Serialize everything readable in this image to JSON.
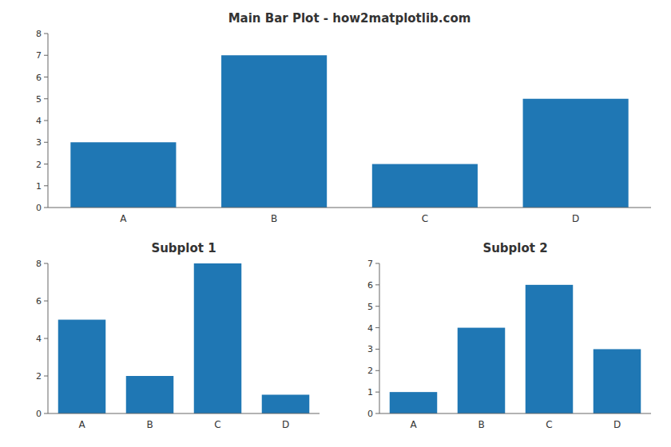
{
  "chart_data": [
    {
      "type": "bar",
      "title": "Main Bar Plot - how2matplotlib.com",
      "categories": [
        "A",
        "B",
        "C",
        "D"
      ],
      "values": [
        3,
        7,
        2,
        5
      ],
      "color": "#1f77b4",
      "ylim": [
        0,
        8
      ],
      "yticks": [
        0,
        1,
        2,
        3,
        4,
        5,
        6,
        7,
        8
      ]
    },
    {
      "type": "bar",
      "title": "Subplot 1",
      "categories": [
        "A",
        "B",
        "C",
        "D"
      ],
      "values": [
        5,
        2,
        8,
        1
      ],
      "color": "#1f77b4",
      "ylim": [
        0,
        8
      ],
      "yticks": [
        0,
        2,
        4,
        6,
        8
      ]
    },
    {
      "type": "bar",
      "title": "Subplot 2",
      "categories": [
        "A",
        "B",
        "C",
        "D"
      ],
      "values": [
        1,
        4,
        6,
        3
      ],
      "color": "#1f77b4",
      "ylim": [
        0,
        7
      ],
      "yticks": [
        0,
        1,
        2,
        3,
        4,
        5,
        6,
        7
      ]
    }
  ]
}
